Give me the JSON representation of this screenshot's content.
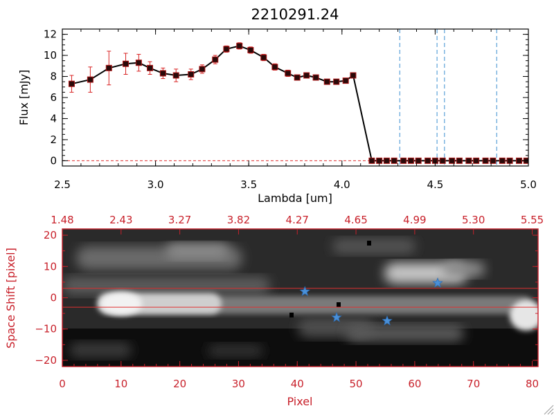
{
  "colors": {
    "axis_black": "#000000",
    "axis_red": "#c8202a",
    "errorbar": "#d82020",
    "marker": "#2a0a0a",
    "vline": "#3a8fd0",
    "star": "#4a90d8",
    "ref_line": "#e03030"
  },
  "chart_data": [
    {
      "type": "line",
      "title": "2210291.24",
      "xlabel": "Lambda [um]",
      "ylabel": "Flux [mJy]",
      "xlim": [
        2.5,
        5.0
      ],
      "ylim": [
        -0.5,
        12.5
      ],
      "xticks": [
        2.5,
        3.0,
        3.5,
        4.0,
        4.5,
        5.0
      ],
      "xtick_labels": [
        "2.5",
        "3.0",
        "3.5",
        "4.0",
        "4.5",
        "5.0"
      ],
      "yticks": [
        0,
        2,
        4,
        6,
        8,
        10,
        12
      ],
      "ytick_labels": [
        "0",
        "2",
        "4",
        "6",
        "8",
        "10",
        "12"
      ],
      "grid": false,
      "series": [
        {
          "x": [
            2.55,
            2.65,
            2.75,
            2.84,
            2.91,
            2.97,
            3.04,
            3.11,
            3.19,
            3.25,
            3.32,
            3.38,
            3.45,
            3.51,
            3.58,
            3.64,
            3.71,
            3.76,
            3.81,
            3.86,
            3.92,
            3.97,
            4.02,
            4.06,
            4.16,
            4.2,
            4.24,
            4.28,
            4.33,
            4.37,
            4.41,
            4.46,
            4.5,
            4.54,
            4.59,
            4.63,
            4.68,
            4.72,
            4.77,
            4.81,
            4.86,
            4.9,
            4.95,
            4.99
          ],
          "y": [
            7.3,
            7.7,
            8.8,
            9.2,
            9.3,
            8.8,
            8.3,
            8.1,
            8.2,
            8.7,
            9.6,
            10.6,
            10.9,
            10.5,
            9.8,
            8.9,
            8.3,
            7.9,
            8.1,
            7.9,
            7.5,
            7.5,
            7.6,
            8.1,
            0,
            0,
            0,
            0,
            0,
            0,
            0,
            0,
            0,
            0,
            0,
            0,
            0,
            0,
            0,
            0,
            0,
            0,
            0,
            0
          ],
          "yerr": [
            0.8,
            1.2,
            1.6,
            1.0,
            0.8,
            0.6,
            0.5,
            0.6,
            0.5,
            0.4,
            0.4,
            0.3,
            0.3,
            0.3,
            0.3,
            0.3,
            0.3,
            0.2,
            0.2,
            0.2,
            0.2,
            0.2,
            0.2,
            0.2,
            0,
            0,
            0,
            0,
            0,
            0,
            0,
            0,
            0,
            0,
            0,
            0,
            0,
            0,
            0,
            0,
            0,
            0,
            0,
            0
          ]
        }
      ],
      "vlines": [
        4.31,
        4.51,
        4.55,
        4.83
      ],
      "hline": 0
    },
    {
      "type": "heatmap",
      "xlabel": "Pixel",
      "ylabel": "Space Shift [pixel]",
      "xlim": [
        0,
        81
      ],
      "ylim": [
        -22,
        22
      ],
      "xticks": [
        0,
        10,
        20,
        30,
        40,
        50,
        60,
        70,
        80
      ],
      "xtick_labels": [
        "0",
        "10",
        "20",
        "30",
        "40",
        "50",
        "60",
        "70",
        "80"
      ],
      "yticks": [
        -20,
        -10,
        0,
        10,
        20
      ],
      "ytick_labels": [
        "−20",
        "−10",
        "0",
        "10",
        "20"
      ],
      "top_ticks": [
        0,
        10,
        20,
        30,
        40,
        50,
        60,
        70,
        80
      ],
      "top_tick_labels": [
        "1.48",
        "2.43",
        "3.27",
        "3.82",
        "4.27",
        "4.65",
        "4.99",
        "5.30",
        "5.55"
      ],
      "ref_lines_y": [
        3,
        -3
      ],
      "stars": [
        {
          "x": 41.3,
          "y": 2.0
        },
        {
          "x": 46.7,
          "y": -6.3
        },
        {
          "x": 55.3,
          "y": -7.4
        },
        {
          "x": 63.9,
          "y": 4.7
        }
      ]
    }
  ]
}
